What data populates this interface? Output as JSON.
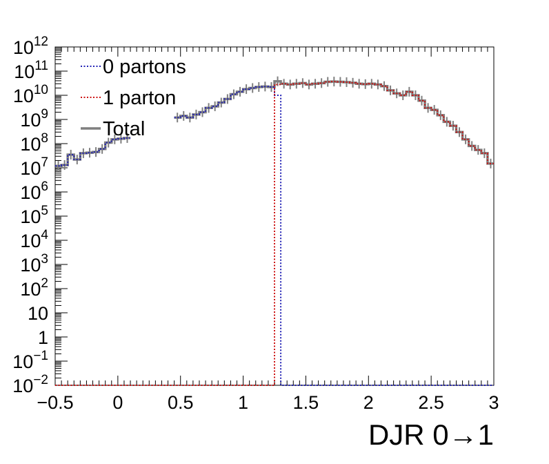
{
  "chart_data": {
    "type": "line",
    "title": "",
    "xlabel": "DJR 0→1",
    "ylabel": "",
    "xlim": [
      -0.5,
      3.0
    ],
    "ylim": [
      0.01,
      1000000000000.0
    ],
    "yscale": "log",
    "grid": false,
    "legend_position": "top-left",
    "x_tick_labels": [
      "−0.5",
      "0",
      "0.5",
      "1",
      "1.5",
      "2",
      "2.5",
      "3"
    ],
    "y_tick_labels": [
      {
        "base": "10",
        "exp": "−2"
      },
      {
        "base": "10",
        "exp": "−1"
      },
      {
        "base": "1",
        "exp": ""
      },
      {
        "base": "10",
        "exp": ""
      },
      {
        "base": "10",
        "exp": "2"
      },
      {
        "base": "10",
        "exp": "3"
      },
      {
        "base": "10",
        "exp": "4"
      },
      {
        "base": "10",
        "exp": "5"
      },
      {
        "base": "10",
        "exp": "6"
      },
      {
        "base": "10",
        "exp": "7"
      },
      {
        "base": "10",
        "exp": "8"
      },
      {
        "base": "10",
        "exp": "9"
      },
      {
        "base": "10",
        "exp": "10"
      },
      {
        "base": "10",
        "exp": "11"
      },
      {
        "base": "10",
        "exp": "12"
      }
    ],
    "bin_edges": [
      -0.5,
      -0.45,
      -0.4,
      -0.35,
      -0.3,
      -0.25,
      -0.2,
      -0.15,
      -0.1,
      -0.05,
      0.0,
      0.05,
      0.1,
      0.15,
      0.2,
      0.25,
      0.3,
      0.35,
      0.4,
      0.45,
      0.5,
      0.55,
      0.6,
      0.65,
      0.7,
      0.75,
      0.8,
      0.85,
      0.9,
      0.95,
      1.0,
      1.05,
      1.1,
      1.15,
      1.2,
      1.25,
      1.3,
      1.35,
      1.4,
      1.45,
      1.5,
      1.55,
      1.6,
      1.65,
      1.7,
      1.75,
      1.8,
      1.85,
      1.9,
      1.95,
      2.0,
      2.05,
      2.1,
      2.15,
      2.2,
      2.25,
      2.3,
      2.35,
      2.4,
      2.45,
      2.5,
      2.55,
      2.6,
      2.65,
      2.7,
      2.75,
      2.8,
      2.85,
      2.9,
      2.95,
      3.0
    ],
    "series": [
      {
        "name": "0 partons",
        "color": "#1f1fb4",
        "style": "dotted",
        "values": [
          12000000.0,
          13000000.0,
          35000000.0,
          22000000.0,
          40000000.0,
          42000000.0,
          45000000.0,
          60000000.0,
          110000000.0,
          150000000.0,
          160000000.0,
          170000000.0,
          null,
          null,
          null,
          null,
          null,
          null,
          null,
          1200000000.0,
          1400000000.0,
          1200000000.0,
          1600000000.0,
          2000000000.0,
          3000000000.0,
          3500000000.0,
          5000000000.0,
          7000000000.0,
          11000000000.0,
          14000000000.0,
          18000000000.0,
          20000000000.0,
          22000000000.0,
          23000000000.0,
          22000000000.0,
          10000000000.0,
          0.01,
          0.01,
          0.01,
          0.01,
          0.01,
          0.01,
          0.01,
          0.01,
          0.01,
          0.01,
          0.01,
          0.01,
          0.01,
          0.01,
          0.01,
          0.01,
          0.01,
          0.01,
          0.01,
          0.01,
          0.01,
          0.01,
          0.01,
          0.01,
          0.01,
          0.01,
          0.01,
          0.01,
          0.01,
          0.01,
          0.01,
          0.01,
          0.01,
          0.01
        ]
      },
      {
        "name": "1 parton",
        "color": "#cc1111",
        "style": "dotted",
        "values": [
          0.01,
          0.01,
          0.01,
          0.01,
          0.01,
          0.01,
          0.01,
          0.01,
          0.01,
          0.01,
          0.01,
          0.01,
          0.01,
          0.01,
          0.01,
          0.01,
          0.01,
          0.01,
          0.01,
          0.01,
          0.01,
          0.01,
          0.01,
          0.01,
          0.01,
          0.01,
          0.01,
          0.01,
          0.01,
          0.01,
          0.01,
          0.01,
          0.01,
          0.01,
          0.01,
          28000000000.0,
          30000000000.0,
          28000000000.0,
          30000000000.0,
          32000000000.0,
          28000000000.0,
          30000000000.0,
          32000000000.0,
          36000000000.0,
          37000000000.0,
          36000000000.0,
          35000000000.0,
          33000000000.0,
          30000000000.0,
          29000000000.0,
          30000000000.0,
          28000000000.0,
          24000000000.0,
          16000000000.0,
          12000000000.0,
          10000000000.0,
          14000000000.0,
          10000000000.0,
          6000000000.0,
          3000000000.0,
          2500000000.0,
          1500000000.0,
          800000000.0,
          550000000.0,
          300000000.0,
          150000000.0,
          80000000.0,
          55000000.0,
          40000000.0,
          15000000.0
        ]
      },
      {
        "name": "Total",
        "color": "#7f7f7f",
        "style": "solid",
        "values": [
          12000000.0,
          13000000.0,
          35000000.0,
          22000000.0,
          40000000.0,
          42000000.0,
          45000000.0,
          60000000.0,
          110000000.0,
          150000000.0,
          160000000.0,
          170000000.0,
          null,
          null,
          null,
          null,
          null,
          null,
          null,
          1200000000.0,
          1400000000.0,
          1200000000.0,
          1600000000.0,
          2000000000.0,
          3000000000.0,
          3500000000.0,
          5000000000.0,
          7000000000.0,
          11000000000.0,
          14000000000.0,
          18000000000.0,
          20000000000.0,
          22000000000.0,
          23000000000.0,
          22000000000.0,
          38000000000.0,
          30000000000.0,
          28000000000.0,
          30000000000.0,
          32000000000.0,
          28000000000.0,
          30000000000.0,
          32000000000.0,
          36000000000.0,
          37000000000.0,
          36000000000.0,
          35000000000.0,
          33000000000.0,
          30000000000.0,
          29000000000.0,
          30000000000.0,
          28000000000.0,
          24000000000.0,
          16000000000.0,
          12000000000.0,
          10000000000.0,
          14000000000.0,
          10000000000.0,
          6000000000.0,
          3000000000.0,
          2500000000.0,
          1500000000.0,
          800000000.0,
          550000000.0,
          300000000.0,
          150000000.0,
          80000000.0,
          55000000.0,
          40000000.0,
          15000000.0
        ]
      }
    ],
    "legend": [
      {
        "label": "0 partons",
        "color": "#1f1fb4",
        "style": "dotted"
      },
      {
        "label": "1 parton",
        "color": "#cc1111",
        "style": "dotted"
      },
      {
        "label": "Total",
        "color": "#7f7f7f",
        "style": "solid"
      }
    ]
  }
}
